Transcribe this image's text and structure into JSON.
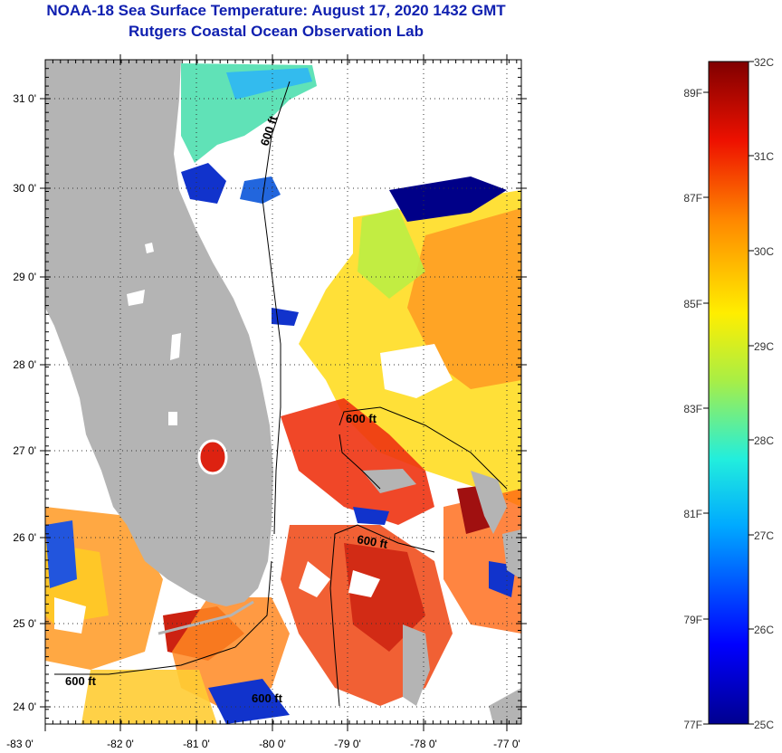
{
  "header": {
    "title": "NOAA-18 Sea Surface Temperature:  August 17, 2020 1432 GMT",
    "subtitle": "Rutgers Coastal Ocean Observation Lab"
  },
  "map": {
    "lat_labels": [
      "31 0'",
      "30 0'",
      "29 0'",
      "28 0'",
      "27 0'",
      "26 0'",
      "25 0'",
      "24 0'"
    ],
    "lon_labels": [
      "-83 0'",
      "-82 0'",
      "-81 0'",
      "-80 0'",
      "-79 0'",
      "-78 0'",
      "-77 0'"
    ],
    "contour_labels": [
      "600 ft",
      "600 ft",
      "600 ft",
      "600 ft",
      "600 ft"
    ],
    "colors": {
      "land": "#b4b4b4",
      "cloud": "#ffffff",
      "contour": "#000000"
    }
  },
  "colorbar": {
    "celsius_labels": [
      "32C",
      "31C",
      "30C",
      "29C",
      "28C",
      "27C",
      "26C",
      "25C"
    ],
    "fahrenheit_labels": [
      "89F",
      "87F",
      "85F",
      "83F",
      "81F",
      "79F",
      "77F"
    ],
    "range_c": [
      25,
      32
    ],
    "colors": [
      "#00008f",
      "#0000ff",
      "#00aaff",
      "#22eedd",
      "#aaee44",
      "#ffee00",
      "#ff8800",
      "#ee1100",
      "#800000"
    ]
  }
}
